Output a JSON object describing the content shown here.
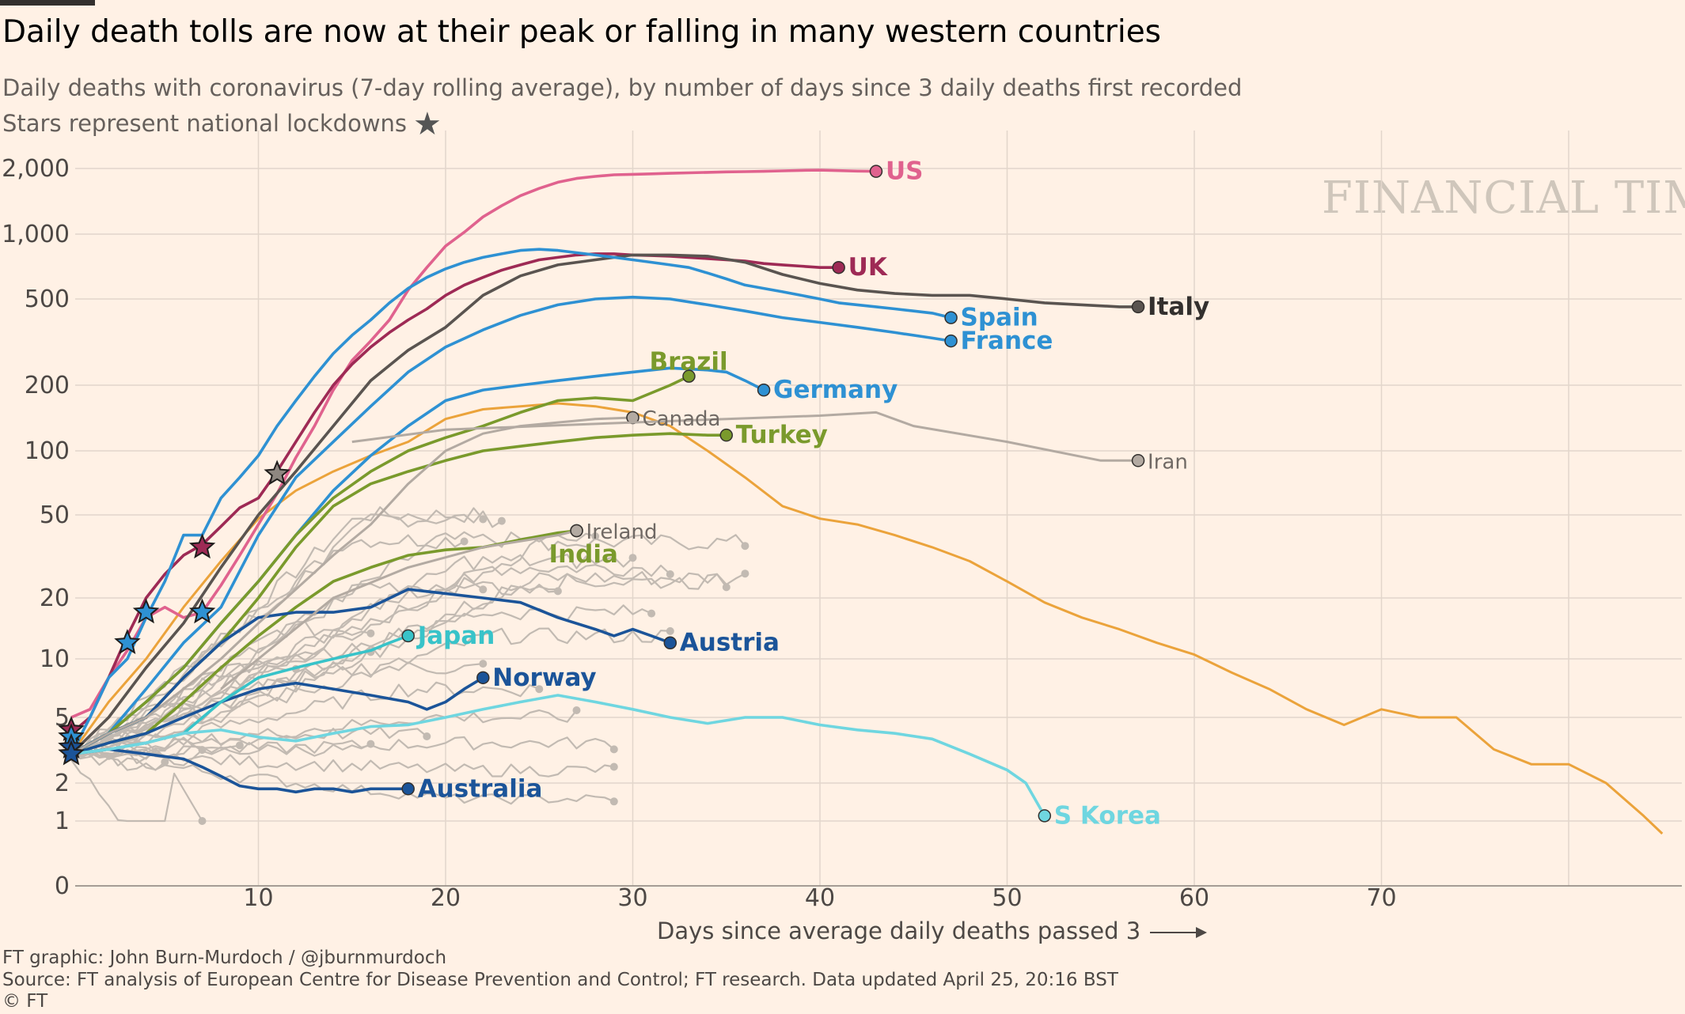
{
  "title": "Daily death tolls are now at their peak or falling in many western countries",
  "subtitle": "Daily deaths with coronavirus (7-day rolling average), by number of days since 3 daily deaths first recorded",
  "subtitle2": "Stars represent national lockdowns",
  "watermark": "FINANCIAL TIMES",
  "footer": {
    "credit": "FT graphic: John Burn-Murdoch / @jburnmurdoch",
    "source": "Source: FT analysis of European Centre for Disease Prevention and Control; FT research. Data updated April 25, 20:16 BST",
    "copyright": "© FT"
  },
  "colors": {
    "background": "#fff1e5",
    "grid": "#e2d6cb",
    "gray_lines": "#c2bab2",
    "US": "#e0628e",
    "UK": "#9e2a55",
    "Italy": "#5a5450",
    "Spain": "#2e91d3",
    "France": "#2e91d3",
    "Germany": "#2e91d3",
    "Brazil": "#7a9a2c",
    "Turkey": "#7a9a2c",
    "India": "#7a9a2c",
    "Austria": "#1b5499",
    "Norway": "#1b5499",
    "Australia": "#1b5499",
    "Japan": "#38c3c9",
    "S Korea": "#6fd6e0",
    "orange": "#eba33b"
  },
  "chart_data": {
    "type": "line",
    "xlabel": "Days since average daily deaths passed 3",
    "x_ticks": [
      10,
      20,
      30,
      40,
      50,
      60,
      70
    ],
    "y_ticks": [
      "0",
      "1",
      "2",
      "5",
      "10",
      "20",
      "50",
      "100",
      "200",
      "500",
      "1,000",
      "2,000"
    ],
    "y_scale": "log",
    "xlim": [
      0,
      85
    ],
    "series": [
      {
        "name": "US",
        "x": [
          0,
          1,
          2,
          3,
          4,
          5,
          6,
          7,
          8,
          9,
          10,
          11,
          12,
          13,
          14,
          15,
          16,
          17,
          18,
          19,
          20,
          21,
          22,
          23,
          24,
          25,
          26,
          27,
          28,
          29,
          30,
          31,
          32,
          33,
          34,
          35,
          36,
          37,
          38,
          39,
          40,
          41,
          42,
          43
        ],
        "y": [
          5,
          5.5,
          8,
          11,
          16,
          18,
          16,
          17,
          23,
          32,
          45,
          63,
          93,
          130,
          190,
          260,
          320,
          400,
          550,
          700,
          880,
          1020,
          1200,
          1350,
          1500,
          1620,
          1730,
          1800,
          1840,
          1870,
          1880,
          1890,
          1900,
          1910,
          1920,
          1930,
          1935,
          1940,
          1950,
          1960,
          1965,
          1955,
          1945,
          1940
        ]
      },
      {
        "name": "UK",
        "x": [
          0,
          1,
          2,
          3,
          4,
          5,
          6,
          7,
          8,
          9,
          10,
          11,
          12,
          13,
          14,
          15,
          16,
          17,
          18,
          19,
          20,
          21,
          22,
          23,
          24,
          25,
          26,
          27,
          28,
          29,
          30,
          31,
          32,
          33,
          34,
          35,
          36,
          37,
          38,
          39,
          40,
          41
        ],
        "y": [
          4,
          5,
          8,
          13,
          20,
          26,
          32,
          36,
          44,
          54,
          60,
          80,
          110,
          150,
          200,
          250,
          300,
          350,
          400,
          450,
          520,
          580,
          630,
          680,
          720,
          760,
          780,
          800,
          810,
          810,
          800,
          795,
          790,
          780,
          770,
          760,
          750,
          730,
          720,
          710,
          700,
          700
        ]
      },
      {
        "name": "Italy",
        "x": [
          0,
          2,
          4,
          6,
          8,
          10,
          12,
          14,
          16,
          18,
          20,
          22,
          24,
          26,
          28,
          30,
          32,
          34,
          36,
          38,
          40,
          42,
          44,
          46,
          48,
          50,
          52,
          54,
          56,
          57
        ],
        "y": [
          3,
          5,
          9,
          15,
          28,
          50,
          80,
          130,
          210,
          290,
          370,
          520,
          640,
          720,
          760,
          800,
          800,
          790,
          740,
          650,
          590,
          550,
          530,
          520,
          520,
          500,
          480,
          470,
          460,
          460
        ]
      },
      {
        "name": "Spain",
        "x": [
          0,
          1,
          2,
          3,
          4,
          5,
          6,
          7,
          8,
          9,
          10,
          11,
          12,
          13,
          14,
          15,
          16,
          17,
          18,
          19,
          20,
          21,
          22,
          23,
          24,
          25,
          26,
          27,
          28,
          29,
          30,
          31,
          32,
          33,
          34,
          35,
          36,
          37,
          38,
          39,
          40,
          41,
          42,
          43,
          44,
          45,
          46,
          47
        ],
        "y": [
          3,
          5,
          8,
          10,
          16,
          24,
          40,
          40,
          60,
          75,
          95,
          130,
          170,
          220,
          280,
          340,
          400,
          480,
          560,
          630,
          690,
          740,
          780,
          810,
          840,
          850,
          840,
          820,
          800,
          780,
          760,
          740,
          720,
          700,
          660,
          620,
          580,
          560,
          540,
          520,
          500,
          480,
          470,
          460,
          450,
          440,
          430,
          410
        ]
      },
      {
        "name": "France",
        "x": [
          0,
          2,
          4,
          6,
          8,
          10,
          12,
          14,
          16,
          18,
          20,
          22,
          24,
          26,
          28,
          30,
          32,
          34,
          36,
          38,
          40,
          42,
          44,
          46,
          47
        ],
        "y": [
          3,
          4,
          7,
          12,
          18,
          40,
          75,
          110,
          160,
          230,
          300,
          360,
          420,
          470,
          500,
          510,
          500,
          470,
          440,
          410,
          390,
          370,
          350,
          330,
          320
        ]
      },
      {
        "name": "Germany",
        "x": [
          0,
          2,
          4,
          6,
          8,
          10,
          12,
          14,
          16,
          18,
          20,
          22,
          24,
          26,
          28,
          30,
          32,
          34,
          35,
          36,
          37
        ],
        "y": [
          3,
          4,
          6,
          9,
          15,
          24,
          40,
          65,
          95,
          130,
          170,
          190,
          200,
          210,
          220,
          230,
          240,
          235,
          230,
          210,
          190
        ]
      },
      {
        "name": "Brazil",
        "x": [
          0,
          2,
          4,
          6,
          8,
          10,
          12,
          14,
          16,
          18,
          20,
          22,
          24,
          26,
          28,
          30,
          32,
          33
        ],
        "y": [
          3,
          4,
          6,
          9,
          15,
          24,
          40,
          60,
          80,
          100,
          115,
          130,
          150,
          170,
          175,
          170,
          200,
          220
        ]
      },
      {
        "name": "Turkey",
        "x": [
          0,
          2,
          4,
          6,
          8,
          10,
          12,
          14,
          16,
          18,
          20,
          22,
          24,
          26,
          28,
          30,
          32,
          34,
          35
        ],
        "y": [
          3,
          4,
          5,
          8,
          12,
          20,
          35,
          55,
          70,
          80,
          90,
          100,
          105,
          110,
          115,
          118,
          120,
          118,
          118
        ]
      },
      {
        "name": "India",
        "x": [
          0,
          2,
          4,
          6,
          8,
          10,
          12,
          14,
          16,
          18,
          20,
          22,
          24,
          26,
          27
        ],
        "y": [
          3,
          3.5,
          4,
          6,
          9,
          13,
          18,
          24,
          28,
          32,
          34,
          35,
          38,
          41,
          42
        ]
      },
      {
        "name": "Austria",
        "x": [
          0,
          2,
          4,
          6,
          8,
          10,
          12,
          14,
          16,
          18,
          20,
          22,
          24,
          26,
          28,
          29,
          30,
          31,
          32
        ],
        "y": [
          3,
          4,
          5,
          8,
          12,
          16,
          17,
          17,
          18,
          22,
          21,
          20,
          19,
          16,
          14,
          13,
          14,
          13,
          12
        ]
      },
      {
        "name": "Norway",
        "x": [
          0,
          2,
          4,
          6,
          8,
          10,
          12,
          14,
          16,
          18,
          19,
          20,
          21,
          22
        ],
        "y": [
          3,
          3.5,
          4,
          5,
          6,
          7,
          7.5,
          7,
          6.5,
          6,
          5.5,
          6,
          7,
          8
        ]
      },
      {
        "name": "Australia",
        "x": [
          0,
          2,
          4,
          6,
          7,
          8,
          9,
          10,
          11,
          12,
          13,
          14,
          15,
          16,
          17,
          18
        ],
        "y": [
          3,
          3.2,
          3,
          2.8,
          2.5,
          2.2,
          1.9,
          1.8,
          1.8,
          1.7,
          1.8,
          1.8,
          1.7,
          1.8,
          1.8,
          1.8
        ]
      },
      {
        "name": "Japan",
        "x": [
          0,
          2,
          4,
          6,
          8,
          10,
          12,
          14,
          16,
          17,
          18
        ],
        "y": [
          3,
          3.2,
          3.5,
          4,
          6,
          8,
          9,
          10,
          11,
          12,
          13
        ]
      },
      {
        "name": "S Korea",
        "x": [
          0,
          2,
          4,
          6,
          8,
          10,
          12,
          14,
          16,
          18,
          20,
          22,
          24,
          26,
          28,
          30,
          32,
          34,
          36,
          38,
          40,
          42,
          44,
          46,
          48,
          50,
          51,
          52
        ],
        "y": [
          3,
          3.2,
          3.5,
          4,
          4.2,
          3.8,
          3.6,
          4,
          4.4,
          4.5,
          5,
          5.5,
          6,
          6.5,
          6,
          5.5,
          5,
          4.6,
          5,
          5,
          4.5,
          4.2,
          4,
          3.7,
          3,
          2.4,
          2,
          1.1
        ]
      },
      {
        "name": "Canada",
        "x": [
          0,
          2,
          4,
          6,
          8,
          10,
          12,
          14,
          16,
          18,
          20,
          22,
          24,
          26,
          28,
          30
        ],
        "y": [
          3,
          4,
          5,
          7,
          10,
          15,
          22,
          32,
          45,
          70,
          100,
          120,
          130,
          135,
          140,
          142
        ]
      },
      {
        "name": "Iran",
        "x": [
          15,
          20,
          25,
          30,
          35,
          40,
          43,
          45,
          50,
          55,
          57
        ],
        "y": [
          110,
          125,
          130,
          135,
          140,
          145,
          150,
          130,
          110,
          90,
          90
        ]
      },
      {
        "name": "Ireland",
        "x": [
          8,
          10,
          14,
          18,
          22,
          26,
          27
        ],
        "y": [
          7,
          10,
          20,
          28,
          35,
          40,
          42
        ]
      }
    ]
  }
}
